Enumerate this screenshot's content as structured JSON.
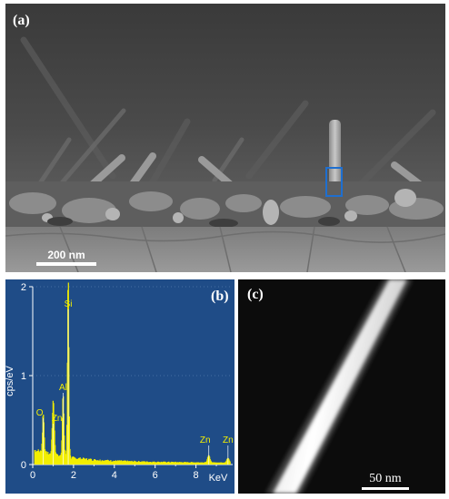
{
  "figure": {
    "panel_a": {
      "label": "(a)",
      "scale_bar": "200 nm",
      "highlight_color": "#1e6fd0"
    },
    "panel_b": {
      "label": "(b)",
      "y_axis_label": "cps/eV",
      "x_axis_unit": "KeV",
      "x_ticks": [
        "0",
        "2",
        "4",
        "6",
        "8"
      ],
      "y_ticks": [
        "0",
        "1",
        "2"
      ],
      "peaks": [
        {
          "name": "O",
          "kev": 0.52
        },
        {
          "name": "Zn",
          "kev": 1.01
        },
        {
          "name": "Al",
          "kev": 1.49
        },
        {
          "name": "Si",
          "kev": 1.74
        },
        {
          "name": "Zn",
          "kev": 8.63
        },
        {
          "name": "Zn",
          "kev": 9.57
        }
      ],
      "background_color": "#1f4c87",
      "spectrum_color": "#f2ee00"
    },
    "panel_c": {
      "label": "(c)",
      "scale_bar": "50 nm"
    }
  }
}
